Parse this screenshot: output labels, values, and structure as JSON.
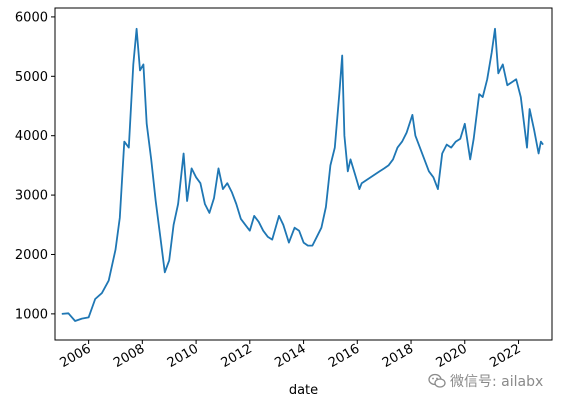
{
  "chart_data": {
    "type": "line",
    "title": "",
    "xlabel": "date",
    "ylabel": "",
    "ylim": [
      560,
      6150
    ],
    "xlim": [
      "2004-10-01",
      "2023-04-01"
    ],
    "grid": false,
    "legend": "none",
    "line_color": "#1f77b4",
    "x_ticks": [
      "2006",
      "2008",
      "2010",
      "2012",
      "2014",
      "2016",
      "2018",
      "2020",
      "2022"
    ],
    "y_ticks": [
      1000,
      2000,
      3000,
      4000,
      5000,
      6000
    ],
    "series": [
      {
        "x": [
          "2005-01-01",
          "2005-04-01",
          "2005-07-01",
          "2005-10-01",
          "2006-01-01",
          "2006-04-01",
          "2006-07-01",
          "2006-10-01",
          "2007-01-01",
          "2007-03-01",
          "2007-05-01",
          "2007-07-01",
          "2007-09-01",
          "2007-10-15",
          "2007-12-01",
          "2008-01-15",
          "2008-03-01",
          "2008-05-01",
          "2008-07-01",
          "2008-09-01",
          "2008-11-01",
          "2009-01-01",
          "2009-03-01",
          "2009-05-01",
          "2009-07-15",
          "2009-09-01",
          "2009-11-01",
          "2010-01-01",
          "2010-03-01",
          "2010-05-01",
          "2010-07-01",
          "2010-09-01",
          "2010-11-01",
          "2011-01-01",
          "2011-03-01",
          "2011-05-01",
          "2011-07-01",
          "2011-09-01",
          "2011-11-01",
          "2012-01-01",
          "2012-03-01",
          "2012-05-01",
          "2012-07-01",
          "2012-09-01",
          "2012-11-01",
          "2013-02-01",
          "2013-04-01",
          "2013-06-15",
          "2013-09-01",
          "2013-11-01",
          "2014-01-01",
          "2014-03-01",
          "2014-05-01",
          "2014-07-01",
          "2014-09-01",
          "2014-11-01",
          "2015-01-01",
          "2015-03-01",
          "2015-05-01",
          "2015-06-10",
          "2015-07-10",
          "2015-08-25",
          "2015-10-01",
          "2015-12-01",
          "2016-01-30",
          "2016-03-01",
          "2016-05-01",
          "2016-07-01",
          "2016-09-01",
          "2016-11-01",
          "2017-01-01",
          "2017-03-01",
          "2017-05-01",
          "2017-07-01",
          "2017-09-01",
          "2017-11-01",
          "2018-01-20",
          "2018-03-01",
          "2018-05-01",
          "2018-07-01",
          "2018-09-01",
          "2018-11-01",
          "2019-01-01",
          "2019-03-01",
          "2019-05-01",
          "2019-07-01",
          "2019-09-01",
          "2019-11-01",
          "2020-01-01",
          "2020-03-15",
          "2020-05-01",
          "2020-07-15",
          "2020-09-01",
          "2020-11-01",
          "2021-01-01",
          "2021-02-15",
          "2021-04-01",
          "2021-06-01",
          "2021-08-01",
          "2021-10-01",
          "2021-12-01",
          "2022-02-01",
          "2022-04-26",
          "2022-06-01",
          "2022-08-01",
          "2022-10-01",
          "2022-11-01",
          "2022-12-01"
        ],
        "values": [
          1000,
          1010,
          880,
          920,
          940,
          1250,
          1350,
          1560,
          2080,
          2620,
          3900,
          3800,
          5200,
          5800,
          5100,
          5200,
          4200,
          3600,
          2900,
          2300,
          1700,
          1900,
          2500,
          2850,
          3700,
          2900,
          3450,
          3300,
          3200,
          2850,
          2700,
          2950,
          3450,
          3100,
          3200,
          3050,
          2850,
          2600,
          2500,
          2400,
          2650,
          2550,
          2400,
          2300,
          2250,
          2650,
          2500,
          2200,
          2450,
          2400,
          2200,
          2150,
          2150,
          2300,
          2450,
          2800,
          3500,
          3800,
          4700,
          5350,
          4000,
          3400,
          3600,
          3350,
          3100,
          3200,
          3250,
          3300,
          3350,
          3400,
          3450,
          3500,
          3600,
          3800,
          3900,
          4050,
          4350,
          4000,
          3800,
          3600,
          3400,
          3300,
          3100,
          3700,
          3850,
          3800,
          3900,
          3950,
          4200,
          3600,
          3950,
          4700,
          4650,
          4950,
          5400,
          5800,
          5050,
          5200,
          4850,
          4900,
          4950,
          4650,
          3800,
          4450,
          4100,
          3700,
          3900,
          3850
        ]
      }
    ]
  },
  "watermark": {
    "text": "微信号: ailabx",
    "icon": "wechat-icon"
  }
}
